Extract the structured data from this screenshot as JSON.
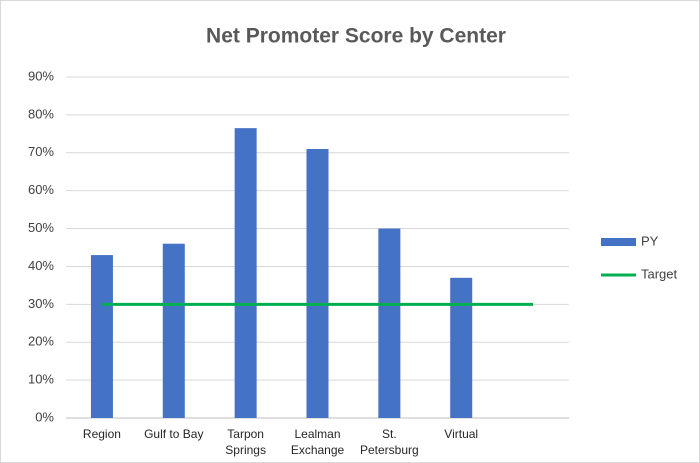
{
  "chart_data": {
    "type": "bar",
    "title": "Net Promoter Score by Center",
    "categories": [
      "Region",
      "Gulf to Bay",
      "Tarpon Springs",
      "Lealman Exchange",
      "St. Petersburg",
      "Virtual",
      null
    ],
    "series": [
      {
        "name": "PY",
        "type": "bar",
        "color": "#4472c4",
        "values": [
          43,
          46,
          76.5,
          71,
          50,
          37,
          null
        ]
      },
      {
        "name": "Target",
        "type": "line",
        "color": "#00b050",
        "values": [
          30,
          30,
          30,
          30,
          30,
          30,
          30
        ]
      }
    ],
    "ylim": [
      0,
      90
    ],
    "yticks": [
      {
        "value": 0,
        "label": "0%"
      },
      {
        "value": 10,
        "label": "10%"
      },
      {
        "value": 20,
        "label": "20%"
      },
      {
        "value": 30,
        "label": "30%"
      },
      {
        "value": 40,
        "label": "40%"
      },
      {
        "value": 50,
        "label": "50%"
      },
      {
        "value": 60,
        "label": "60%"
      },
      {
        "value": 70,
        "label": "70%"
      },
      {
        "value": 80,
        "label": "80%"
      },
      {
        "value": 90,
        "label": "90%"
      }
    ],
    "grid": true,
    "legend": "right"
  }
}
